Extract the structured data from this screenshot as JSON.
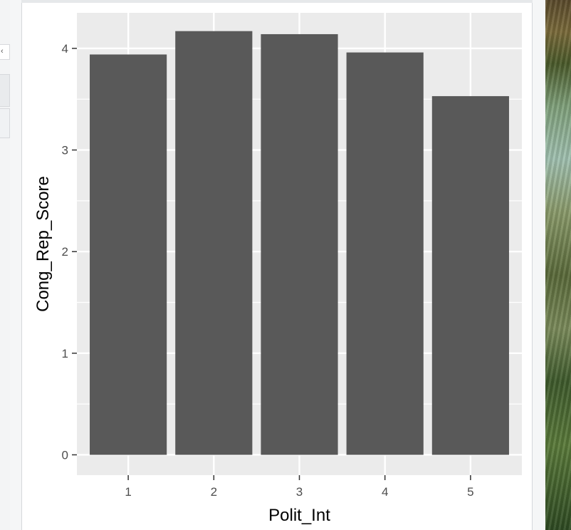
{
  "chart_data": {
    "type": "bar",
    "categories": [
      "1",
      "2",
      "3",
      "4",
      "5"
    ],
    "values": [
      3.94,
      4.17,
      4.14,
      3.96,
      3.53
    ],
    "title": "",
    "xlabel": "Polit_Int",
    "ylabel": "Cong_Rep_Score",
    "ylim": [
      -0.2,
      4.35
    ],
    "yticks": [
      "0",
      "1",
      "2",
      "3",
      "4"
    ],
    "grid": true,
    "bar_color": "#595959",
    "panel_color": "#ebebeb"
  },
  "window": {
    "left_tab_glyph": "‹"
  }
}
